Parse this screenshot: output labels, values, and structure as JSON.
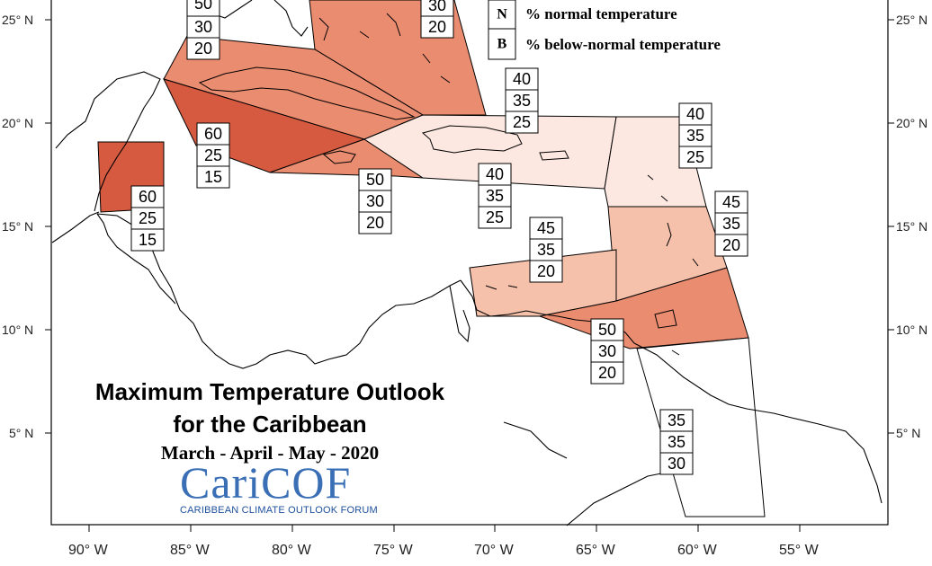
{
  "title": {
    "line1": "Maximum Temperature Outlook",
    "line2": "for the Caribbean",
    "period": "March - April - May - 2020"
  },
  "logo": {
    "name": "CariCOF",
    "tagline": "CARIBBEAN CLIMATE OUTLOOK FORUM"
  },
  "legend": [
    {
      "key": "N",
      "text": "% normal temperature"
    },
    {
      "key": "B",
      "text": "% below-normal temperature"
    }
  ],
  "lat_labels": [
    "25° N",
    "20° N",
    "15° N",
    "10° N",
    "5° N"
  ],
  "lon_labels": [
    "90° W",
    "85° W",
    "80° W",
    "75° W",
    "70° W",
    "65° W",
    "60° W",
    "55° W"
  ],
  "colors": {
    "a60": "#d55a40",
    "a50": "#ea8c6f",
    "a45": "#f6c1ab",
    "a40": "#fce8e0",
    "a35": "#ffffff",
    "coast": "#000000"
  },
  "probabilities": [
    {
      "id": "bahamas-west",
      "values": [
        "50",
        "30",
        "20"
      ]
    },
    {
      "id": "bahamas-east",
      "values": [
        "30",
        "20"
      ]
    },
    {
      "id": "hispaniola-north",
      "values": [
        "40",
        "35",
        "25"
      ]
    },
    {
      "id": "cuba-jamaica",
      "values": [
        "60",
        "25",
        "15"
      ]
    },
    {
      "id": "belize",
      "values": [
        "60",
        "25",
        "15"
      ]
    },
    {
      "id": "jamaica-south",
      "values": [
        "50",
        "30",
        "20"
      ]
    },
    {
      "id": "hispaniola-south",
      "values": [
        "40",
        "35",
        "25"
      ]
    },
    {
      "id": "leeward-islands",
      "values": [
        "40",
        "35",
        "25"
      ]
    },
    {
      "id": "windward-islands",
      "values": [
        "45",
        "35",
        "20"
      ]
    },
    {
      "id": "abc-islands",
      "values": [
        "45",
        "35",
        "20"
      ]
    },
    {
      "id": "trinidad",
      "values": [
        "50",
        "30",
        "20"
      ]
    },
    {
      "id": "guianas",
      "values": [
        "35",
        "35",
        "30"
      ]
    }
  ]
}
